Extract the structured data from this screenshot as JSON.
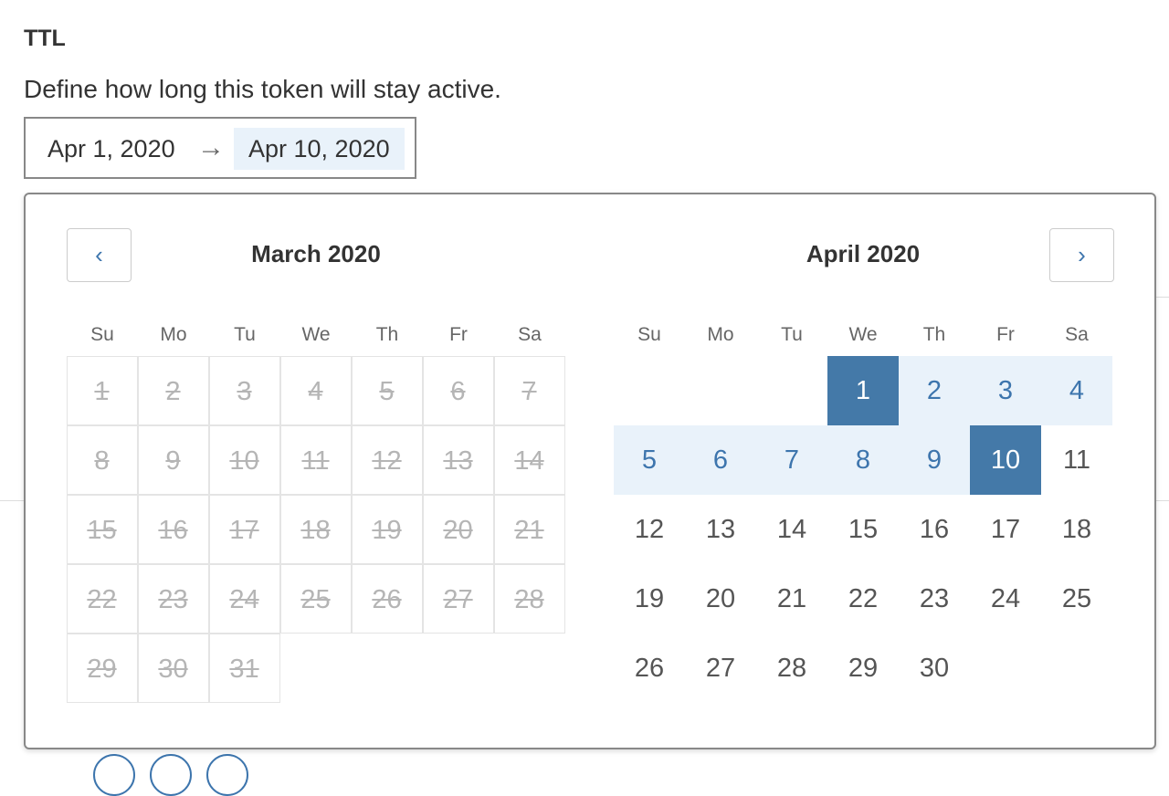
{
  "section": {
    "title": "TTL",
    "description": "Define how long this token will stay active."
  },
  "range": {
    "start": "Apr 1, 2020",
    "arrow": "→",
    "end": "Apr 10, 2020"
  },
  "calendar": {
    "prev_icon": "chevron-left-icon",
    "next_icon": "chevron-right-icon",
    "weekdays": [
      "Su",
      "Mo",
      "Tu",
      "We",
      "Th",
      "Fr",
      "Sa"
    ],
    "left": {
      "title": "March 2020",
      "start_weekday": 0,
      "days": 31,
      "disabled": true
    },
    "right": {
      "title": "April 2020",
      "start_weekday": 3,
      "days": 30,
      "selected_start": 1,
      "selected_end": 10
    },
    "colors": {
      "accent": "#4479a8",
      "range": "#e9f2fa",
      "link": "#3d75ad"
    }
  }
}
